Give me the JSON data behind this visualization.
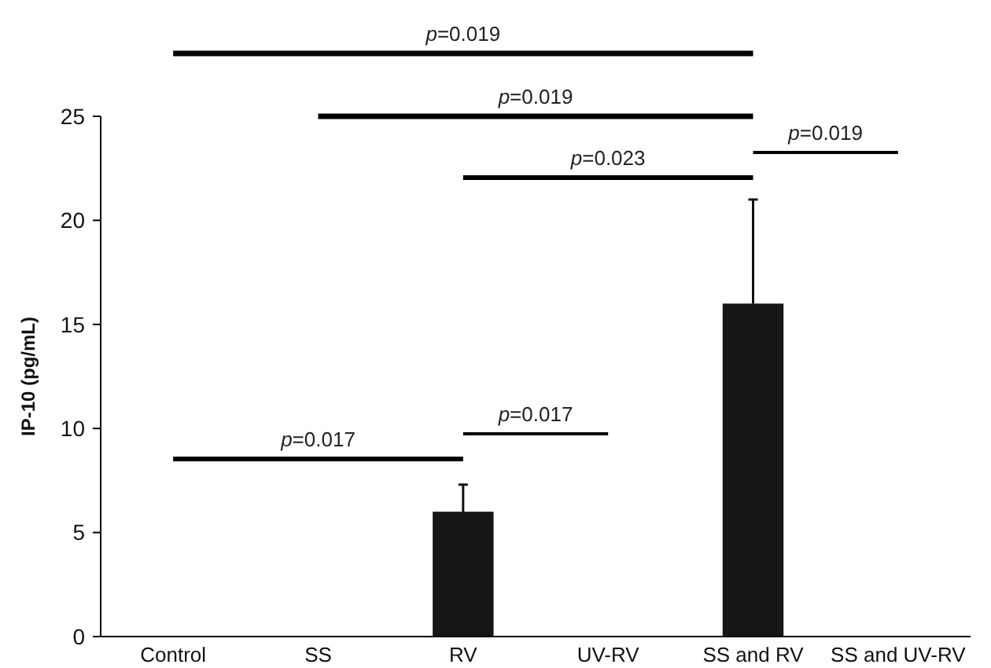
{
  "chart_data": {
    "type": "bar",
    "ylabel": "IP-10 (pg/mL)",
    "categories": [
      "Control",
      "SS",
      "RV",
      "UV-RV",
      "SS and RV",
      "SS and UV-RV"
    ],
    "values": [
      0,
      0,
      6,
      0,
      16,
      0
    ],
    "color": "#161616",
    "errors": [
      null,
      null,
      1.3,
      null,
      5,
      null
    ],
    "ylim": [
      0,
      25
    ],
    "yticks": [
      0,
      5,
      10,
      15,
      20,
      25
    ],
    "grid": false,
    "annotations": [
      "p=0.019",
      "p=0.019",
      "p=0.023",
      "p=0.019",
      "p=0.017",
      "p=0.017"
    ]
  }
}
